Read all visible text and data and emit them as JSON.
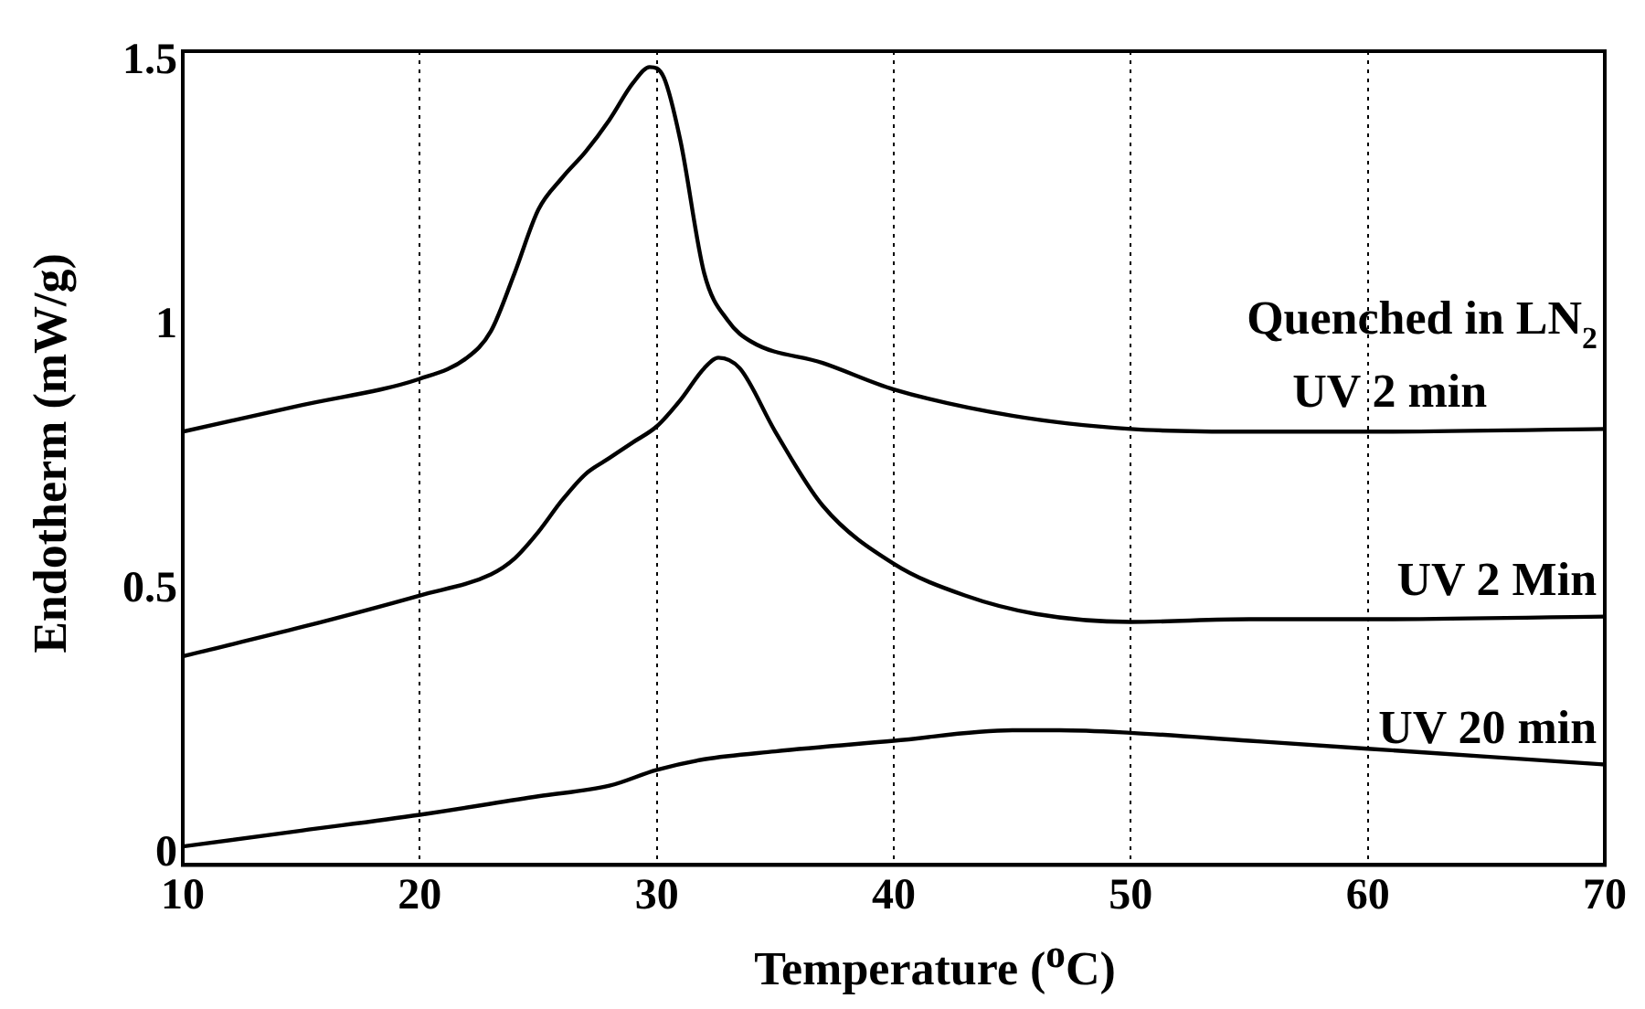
{
  "chart_data": {
    "type": "line",
    "xlabel": "Temperature ($^{o}$C)",
    "ylabel": "Endotherm (mW/g)",
    "xlim": [
      10,
      70
    ],
    "ylim": [
      -0.02,
      1.52
    ],
    "xticks": [
      10,
      20,
      30,
      40,
      50,
      60,
      70
    ],
    "yticks": [
      0,
      0.5,
      1,
      1.5
    ],
    "grid": "x",
    "legend": false,
    "marker": "none",
    "line_style": "solid",
    "series": [
      {
        "name": "Quenched in LN$_{2}$ UV 2 min",
        "color": "#000000",
        "x": [
          10,
          15,
          20,
          22,
          23,
          24,
          25,
          26,
          27,
          28,
          29,
          29.7,
          30.3,
          31,
          32,
          33,
          34,
          37,
          40,
          45,
          50,
          55,
          60,
          70
        ],
        "values": [
          0.8,
          0.85,
          0.9,
          0.94,
          0.99,
          1.1,
          1.22,
          1.28,
          1.33,
          1.39,
          1.46,
          1.49,
          1.47,
          1.35,
          1.1,
          1.01,
          0.97,
          0.93,
          0.88,
          0.83,
          0.805,
          0.8,
          0.8,
          0.805
        ]
      },
      {
        "name": "UV 2 Min",
        "color": "#000000",
        "x": [
          10,
          15,
          20,
          23,
          24,
          25,
          26,
          27,
          28,
          29,
          30,
          31,
          32,
          32.6,
          33.5,
          35,
          37,
          40,
          43,
          46,
          50,
          55,
          60,
          70
        ],
        "values": [
          0.375,
          0.43,
          0.49,
          0.53,
          0.56,
          0.61,
          0.67,
          0.72,
          0.75,
          0.78,
          0.81,
          0.86,
          0.92,
          0.94,
          0.92,
          0.8,
          0.66,
          0.55,
          0.49,
          0.455,
          0.44,
          0.445,
          0.445,
          0.45
        ]
      },
      {
        "name": "UV 20 min",
        "color": "#000000",
        "x": [
          10,
          15,
          20,
          25,
          28,
          30,
          32,
          35,
          40,
          45,
          47,
          50,
          55,
          60,
          65,
          70
        ],
        "values": [
          0.015,
          0.045,
          0.075,
          0.11,
          0.13,
          0.16,
          0.18,
          0.195,
          0.215,
          0.235,
          0.235,
          0.23,
          0.215,
          0.2,
          0.185,
          0.17
        ]
      }
    ]
  }
}
